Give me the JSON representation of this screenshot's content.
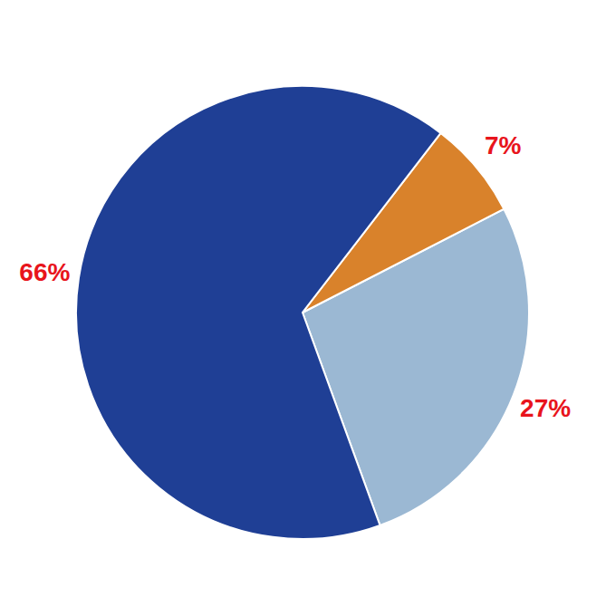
{
  "chart_data": {
    "type": "pie",
    "values": [
      27,
      7,
      66
    ],
    "value_labels": [
      "27%",
      "7%",
      "66%"
    ],
    "colors": [
      "#9bb8d3",
      "#d9822b",
      "#1f3f95"
    ],
    "data_labels": true
  }
}
